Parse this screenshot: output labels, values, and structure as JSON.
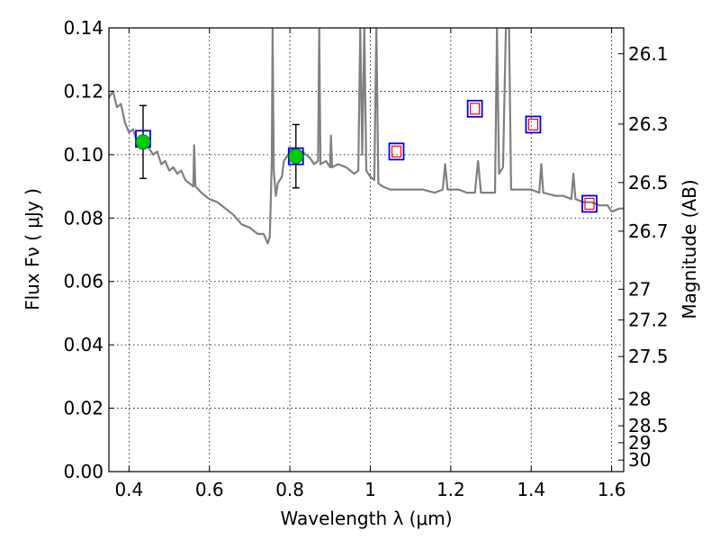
{
  "chart_data": {
    "type": "line",
    "xlabel": "Wavelength  λ (μm)",
    "ylabel": "Flux  Fν  ( μJy )",
    "right_ylabel": "Magnitude (AB)",
    "xlim": [
      0.35,
      1.63
    ],
    "ylim": [
      0.0,
      0.14
    ],
    "x_ticks": [
      0.4,
      0.6,
      0.8,
      1.0,
      1.2,
      1.4,
      1.6
    ],
    "x_tick_labels": [
      "0.4",
      "0.6",
      "0.8",
      "1",
      "1.2",
      "1.4",
      "1.6"
    ],
    "y_ticks": [
      0.0,
      0.02,
      0.04,
      0.06,
      0.08,
      0.1,
      0.12,
      0.14
    ],
    "y_tick_labels": [
      "0.00",
      "0.02",
      "0.04",
      "0.06",
      "0.08",
      "0.10",
      "0.12",
      "0.14"
    ],
    "right_ticks": [
      26.1,
      26.3,
      26.5,
      26.7,
      27,
      27.2,
      27.5,
      28,
      28.5,
      29,
      30
    ],
    "right_tick_labels": [
      "26.1",
      "26.3",
      "26.5",
      "26.7",
      "27",
      "27.2",
      "27.5",
      "28",
      "28.5",
      "29",
      "30"
    ],
    "grid": true,
    "series": [
      {
        "kind": "sed-model",
        "color": "#808080",
        "points": [
          [
            0.35,
            0.118
          ],
          [
            0.36,
            0.12
          ],
          [
            0.37,
            0.115
          ],
          [
            0.38,
            0.116
          ],
          [
            0.39,
            0.11
          ],
          [
            0.4,
            0.107
          ],
          [
            0.41,
            0.108
          ],
          [
            0.42,
            0.104
          ],
          [
            0.43,
            0.106
          ],
          [
            0.44,
            0.103
          ],
          [
            0.45,
            0.102
          ],
          [
            0.46,
            0.1
          ],
          [
            0.47,
            0.101
          ],
          [
            0.48,
            0.097
          ],
          [
            0.49,
            0.098
          ],
          [
            0.5,
            0.095
          ],
          [
            0.51,
            0.096
          ],
          [
            0.52,
            0.094
          ],
          [
            0.53,
            0.095
          ],
          [
            0.54,
            0.092
          ],
          [
            0.55,
            0.091
          ],
          [
            0.56,
            0.09
          ],
          [
            0.562,
            0.103
          ],
          [
            0.565,
            0.09
          ],
          [
            0.58,
            0.088
          ],
          [
            0.6,
            0.086
          ],
          [
            0.62,
            0.085
          ],
          [
            0.64,
            0.083
          ],
          [
            0.66,
            0.081
          ],
          [
            0.68,
            0.078
          ],
          [
            0.7,
            0.077
          ],
          [
            0.72,
            0.075
          ],
          [
            0.735,
            0.075
          ],
          [
            0.745,
            0.072
          ],
          [
            0.75,
            0.074
          ],
          [
            0.755,
            0.098
          ],
          [
            0.757,
            0.14
          ],
          [
            0.76,
            0.095
          ],
          [
            0.765,
            0.087
          ],
          [
            0.77,
            0.091
          ],
          [
            0.78,
            0.093
          ],
          [
            0.785,
            0.098
          ],
          [
            0.79,
            0.099
          ],
          [
            0.795,
            0.1
          ],
          [
            0.8,
            0.101
          ],
          [
            0.81,
            0.102
          ],
          [
            0.83,
            0.101
          ],
          [
            0.84,
            0.1
          ],
          [
            0.85,
            0.099
          ],
          [
            0.86,
            0.097
          ],
          [
            0.87,
            0.098
          ],
          [
            0.873,
            0.14
          ],
          [
            0.876,
            0.097
          ],
          [
            0.89,
            0.098
          ],
          [
            0.9,
            0.096
          ],
          [
            0.902,
            0.106
          ],
          [
            0.905,
            0.096
          ],
          [
            0.92,
            0.097
          ],
          [
            0.94,
            0.096
          ],
          [
            0.95,
            0.095
          ],
          [
            0.96,
            0.094
          ],
          [
            0.97,
            0.095
          ],
          [
            0.975,
            0.14
          ],
          [
            0.98,
            0.1
          ],
          [
            0.985,
            0.14
          ],
          [
            0.99,
            0.095
          ],
          [
            1.0,
            0.093
          ],
          [
            1.01,
            0.092
          ],
          [
            1.015,
            0.14
          ],
          [
            1.02,
            0.091
          ],
          [
            1.03,
            0.09
          ],
          [
            1.05,
            0.089
          ],
          [
            1.07,
            0.089
          ],
          [
            1.1,
            0.089
          ],
          [
            1.13,
            0.089
          ],
          [
            1.16,
            0.088
          ],
          [
            1.18,
            0.089
          ],
          [
            1.186,
            0.097
          ],
          [
            1.192,
            0.089
          ],
          [
            1.22,
            0.089
          ],
          [
            1.24,
            0.088
          ],
          [
            1.26,
            0.088
          ],
          [
            1.268,
            0.098
          ],
          [
            1.275,
            0.088
          ],
          [
            1.3,
            0.088
          ],
          [
            1.31,
            0.088
          ],
          [
            1.315,
            0.14
          ],
          [
            1.32,
            0.094
          ],
          [
            1.33,
            0.096
          ],
          [
            1.337,
            0.14
          ],
          [
            1.345,
            0.14
          ],
          [
            1.35,
            0.089
          ],
          [
            1.37,
            0.089
          ],
          [
            1.4,
            0.089
          ],
          [
            1.42,
            0.088
          ],
          [
            1.425,
            0.097
          ],
          [
            1.43,
            0.088
          ],
          [
            1.46,
            0.087
          ],
          [
            1.48,
            0.087
          ],
          [
            1.5,
            0.086
          ],
          [
            1.505,
            0.094
          ],
          [
            1.51,
            0.086
          ],
          [
            1.53,
            0.085
          ],
          [
            1.55,
            0.085
          ],
          [
            1.57,
            0.084
          ],
          [
            1.59,
            0.084
          ],
          [
            1.6,
            0.082
          ],
          [
            1.62,
            0.083
          ],
          [
            1.63,
            0.083
          ]
        ]
      }
    ],
    "observed_points": [
      {
        "x": 0.435,
        "y": 0.104,
        "yerr_low": 0.0925,
        "yerr_high": 0.1155,
        "color": "#00cc00"
      },
      {
        "x": 0.815,
        "y": 0.0995,
        "yerr_low": 0.0895,
        "yerr_high": 0.1095,
        "color": "#00cc00"
      }
    ],
    "model_band_boxes": [
      {
        "x": 0.435,
        "y": 0.105
      },
      {
        "x": 0.815,
        "y": 0.0995
      },
      {
        "x": 1.065,
        "y": 0.101
      },
      {
        "x": 1.26,
        "y": 0.1145
      },
      {
        "x": 1.405,
        "y": 0.1095
      },
      {
        "x": 1.545,
        "y": 0.0845
      }
    ],
    "upper_limit_markers": [
      {
        "x": 1.065,
        "y": 0.101
      },
      {
        "x": 1.26,
        "y": 0.1145
      },
      {
        "x": 1.405,
        "y": 0.1095
      },
      {
        "x": 1.545,
        "y": 0.0845
      }
    ],
    "colors": {
      "sed": "#808080",
      "box": "#0000ff",
      "upper_limit": "#ff0000",
      "detected": "#00cc00",
      "errorbar": "#000000"
    }
  }
}
